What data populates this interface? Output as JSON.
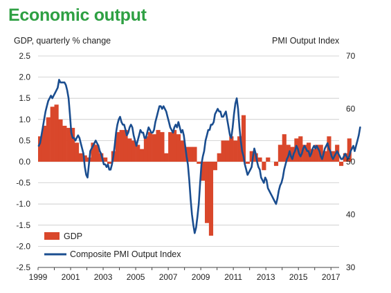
{
  "title": "Economic output",
  "chart_data": {
    "type": "bar+line",
    "ylabel_left": "GDP, quarterly % change",
    "ylabel_right": "PMI Output  Index",
    "y_left_ticks": [
      "2.5",
      "2.0",
      "1.5",
      "1.0",
      "0.5",
      "0.0",
      "-0.5",
      "-1.0",
      "-1.5",
      "-2.0",
      "-2.5"
    ],
    "y_right_ticks": [
      "70",
      "60",
      "50",
      "40",
      "30"
    ],
    "x_ticks": [
      "1999",
      "2001",
      "2003",
      "2005",
      "2007",
      "2009",
      "2011",
      "2013",
      "2015",
      "2017"
    ],
    "ylim_left": [
      -2.5,
      2.5
    ],
    "ylim_right": [
      30,
      70
    ],
    "xlim": [
      1999.0,
      2017.5
    ],
    "grid": "horizontal",
    "legend_position": "bottom-left",
    "colors": {
      "GDP": "#d9472b",
      "Composite PMI Output Index": "#1a4d8f"
    },
    "gdp_quarters": {
      "start": "1999 Q1",
      "values": [
        0.6,
        0.85,
        1.05,
        1.3,
        1.35,
        1.0,
        0.85,
        0.8,
        0.8,
        0.45,
        0.2,
        0.15,
        0.1,
        0.45,
        0.4,
        0.2,
        0.1,
        -0.05,
        0.25,
        0.7,
        0.75,
        0.75,
        0.55,
        0.5,
        0.4,
        0.3,
        0.6,
        0.7,
        0.65,
        0.75,
        0.7,
        0.2,
        0.7,
        0.75,
        0.65,
        0.5,
        0.35,
        0.35,
        0.35,
        -0.05,
        -0.45,
        -1.45,
        -1.75,
        -0.2,
        0.2,
        0.5,
        0.5,
        0.6,
        0.5,
        0.6,
        1.1,
        -0.05,
        0.25,
        0.2,
        0.1,
        -0.2,
        0.1,
        0.0,
        -0.1,
        0.4,
        0.65,
        0.4,
        0.35,
        0.55,
        0.6,
        0.4,
        0.45,
        0.3,
        0.4,
        0.4,
        0.25,
        0.6,
        0.25,
        0.4,
        -0.1,
        0.2,
        0.55
      ]
    },
    "pmi_monthly": {
      "start": "1999-01",
      "values": [
        53.0,
        53.5,
        55.0,
        56.5,
        58.0,
        59.5,
        60.5,
        61.5,
        62.0,
        62.5,
        62.0,
        62.5,
        63.0,
        63.5,
        64.0,
        65.5,
        65.0,
        65.0,
        65.0,
        65.0,
        64.5,
        63.5,
        62.0,
        59.0,
        55.5,
        54.5,
        54.5,
        54.0,
        54.5,
        55.0,
        54.5,
        53.5,
        52.5,
        51.5,
        49.0,
        47.5,
        47.0,
        49.5,
        52.0,
        52.5,
        53.0,
        53.5,
        54.0,
        53.5,
        53.0,
        52.0,
        51.5,
        50.5,
        49.5,
        49.5,
        49.0,
        49.5,
        48.5,
        48.5,
        49.5,
        51.0,
        53.0,
        55.5,
        57.0,
        58.0,
        58.5,
        57.5,
        57.0,
        57.0,
        56.0,
        55.0,
        55.5,
        56.5,
        57.0,
        56.5,
        55.0,
        54.0,
        53.0,
        54.0,
        55.0,
        56.0,
        55.5,
        55.5,
        54.5,
        54.5,
        55.5,
        56.5,
        56.0,
        55.5,
        55.5,
        56.0,
        57.5,
        58.5,
        59.5,
        60.5,
        60.5,
        60.0,
        60.5,
        60.0,
        59.5,
        58.5,
        57.5,
        56.5,
        56.0,
        55.5,
        56.5,
        57.0,
        56.5,
        57.5,
        56.5,
        55.5,
        56.0,
        55.0,
        53.0,
        51.0,
        49.5,
        46.5,
        43.0,
        40.0,
        38.0,
        36.5,
        37.5,
        39.5,
        42.0,
        46.0,
        49.5,
        51.0,
        52.0,
        54.0,
        55.0,
        56.0,
        56.0,
        57.0,
        57.0,
        57.5,
        59.0,
        59.5,
        60.0,
        59.5,
        59.5,
        58.5,
        58.5,
        59.0,
        59.5,
        58.0,
        56.5,
        55.0,
        54.5,
        56.5,
        59.0,
        61.0,
        62.0,
        60.0,
        56.5,
        54.0,
        52.0,
        51.0,
        49.5,
        48.5,
        47.5,
        48.0,
        48.5,
        49.0,
        51.0,
        52.5,
        51.5,
        50.0,
        49.0,
        48.5,
        47.0,
        46.5,
        46.0,
        47.0,
        46.5,
        45.0,
        44.5,
        44.0,
        43.5,
        43.0,
        42.5,
        42.0,
        43.0,
        44.5,
        45.5,
        46.0,
        47.0,
        48.5,
        49.5,
        50.5,
        51.0,
        52.0,
        51.0,
        50.5,
        51.5,
        52.0,
        53.0,
        52.5,
        51.5,
        51.0,
        51.5,
        52.5,
        53.0,
        52.5,
        52.0,
        52.0,
        51.0,
        51.5,
        52.5,
        53.0,
        52.5,
        53.0,
        52.5,
        52.0,
        51.0,
        50.5,
        51.5,
        52.5,
        53.0,
        53.5,
        52.5,
        52.0,
        51.0,
        50.5,
        51.0,
        51.5,
        52.0,
        51.5,
        51.0,
        50.5,
        50.5,
        51.0,
        51.5,
        51.0,
        50.5,
        51.0,
        52.0,
        52.5,
        53.0,
        52.0,
        53.0,
        54.0,
        55.0,
        56.5
      ]
    }
  },
  "legend": {
    "gdp": "GDP",
    "pmi": "Composite PMI Output Index"
  }
}
